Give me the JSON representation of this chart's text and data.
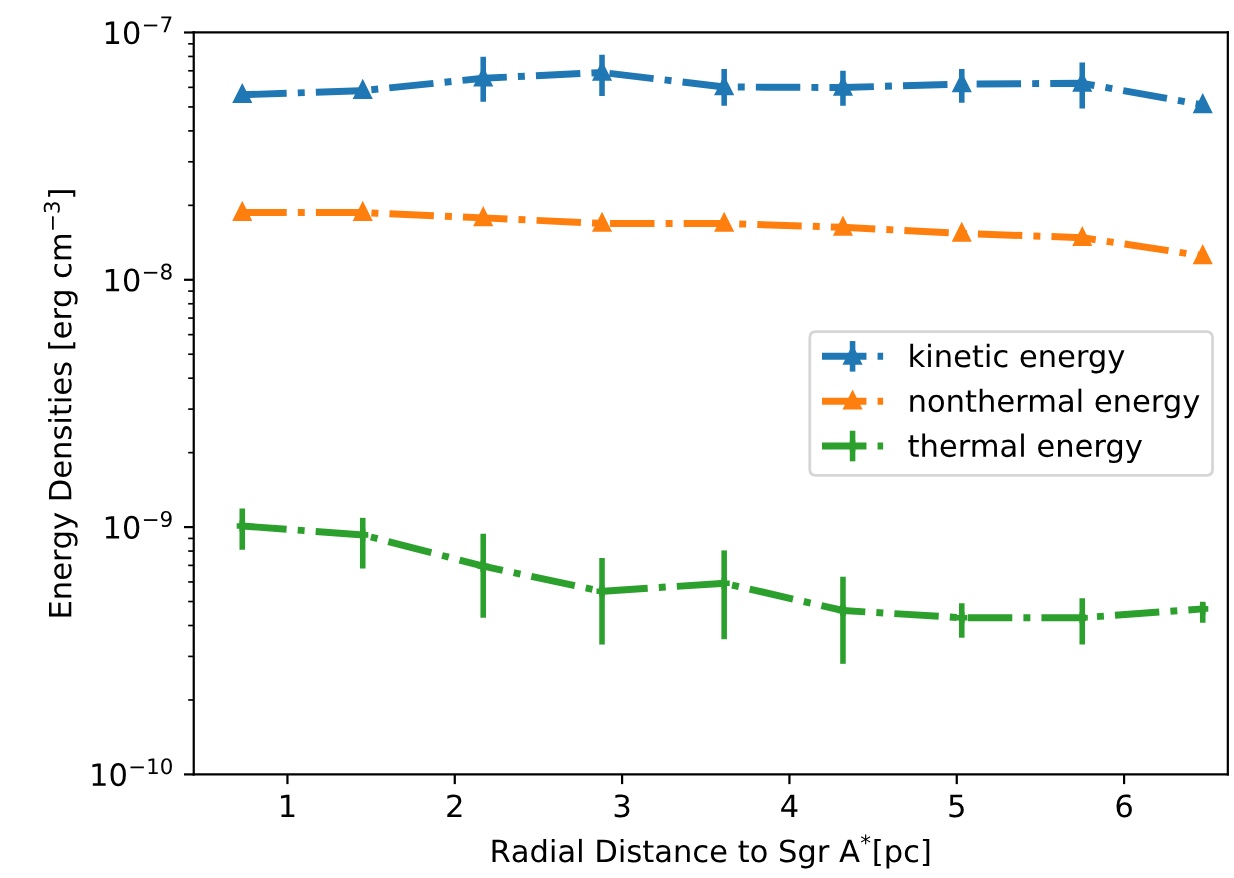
{
  "chart_data": {
    "type": "line",
    "xlabel": "Radial Distance to Sgr A$^{*}$[pc]",
    "ylabel": "Energy Densities [erg cm$^{−3}$]",
    "x": [
      0.73,
      1.45,
      2.17,
      2.88,
      3.61,
      4.32,
      5.03,
      5.75,
      6.47
    ],
    "series": [
      {
        "name": "kinetic energy",
        "color": "#1f77b4",
        "marker": "triangle",
        "values": [
          5.6e-08,
          5.82e-08,
          6.53e-08,
          6.89e-08,
          6.02e-08,
          5.99e-08,
          6.19e-08,
          6.23e-08,
          5.1e-08
        ],
        "errors": [
          [
            5.4e-08,
            5.8e-08
          ],
          [
            5.6e-08,
            6.05e-08
          ],
          [
            5.25e-08,
            7.97e-08
          ],
          [
            5.53e-08,
            8.13e-08
          ],
          [
            5.06e-08,
            7.12e-08
          ],
          [
            5.06e-08,
            7e-08
          ],
          [
            5.2e-08,
            7.12e-08
          ],
          [
            4.93e-08,
            7.56e-08
          ],
          [
            4.9e-08,
            5.3e-08
          ]
        ]
      },
      {
        "name": "nonthermal energy",
        "color": "#ff7f0e",
        "marker": "triangle",
        "values": [
          1.87e-08,
          1.87e-08,
          1.78e-08,
          1.69e-08,
          1.69e-08,
          1.63e-08,
          1.54e-08,
          1.48e-08,
          1.25e-08
        ]
      },
      {
        "name": "thermal energy",
        "color": "#2ca02c",
        "marker": "cross",
        "values": [
          1.01e-09,
          9.3e-10,
          6.95e-10,
          5.5e-10,
          5.93e-10,
          4.6e-10,
          4.3e-10,
          4.3e-10,
          4.67e-10
        ],
        "errors": [
          [
            8.1e-10,
            1.19e-09
          ],
          [
            6.8e-10,
            1.09e-09
          ],
          [
            4.3e-10,
            9.4e-10
          ],
          [
            3.35e-10,
            7.5e-10
          ],
          [
            3.52e-10,
            8.05e-10
          ],
          [
            2.8e-10,
            6.3e-10
          ],
          [
            3.57e-10,
            4.92e-10
          ],
          [
            3.35e-10,
            5.15e-10
          ],
          [
            4.1e-10,
            4.99e-10
          ]
        ]
      }
    ],
    "log": "y",
    "xlim": [
      0.44,
      6.62
    ],
    "xticks": [
      1,
      2,
      3,
      4,
      5,
      6
    ],
    "ylim": [
      1e-10,
      1e-07
    ],
    "yticks": [
      {
        "value": 1e-10,
        "label": "10$^{−10}$"
      },
      {
        "value": 1e-09,
        "label": "10$^{−9}$"
      },
      {
        "value": 1e-08,
        "label": "10$^{−8}$"
      },
      {
        "value": 1e-07,
        "label": "10$^{−7}$"
      }
    ],
    "line_style": "dashdot",
    "legend": "center right",
    "grid": false
  }
}
